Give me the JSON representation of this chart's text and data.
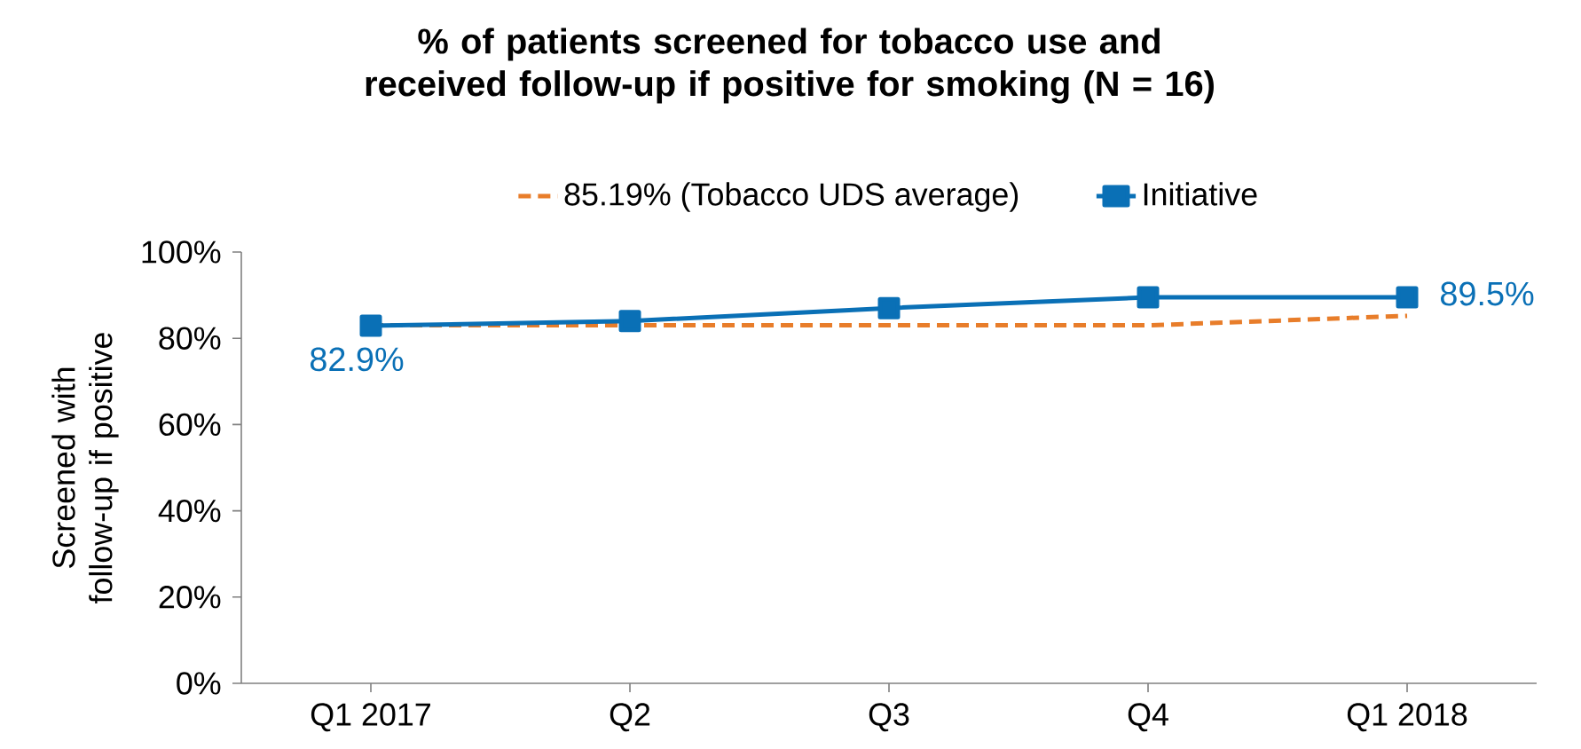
{
  "chart_data": {
    "type": "line",
    "title": "% of patients screened for tobacco use and received follow-up if positive for smoking (N = 16)",
    "ylabel": "Screened with follow-up if positive",
    "categories": [
      "Q1 2017",
      "Q2",
      "Q3",
      "Q4",
      "Q1 2018"
    ],
    "series": [
      {
        "name": "85.19% (Tobacco UDS average)",
        "color": "#e87d2a",
        "values": [
          83,
          83,
          83,
          83,
          85.2
        ],
        "line_style": "dashed",
        "marker": "none"
      },
      {
        "name": "Initiative",
        "color": "#0a70b6",
        "values": [
          82.9,
          84,
          87,
          89.5,
          89.5
        ],
        "line_style": "solid",
        "marker": "square",
        "value_labels": [
          "82.9%",
          null,
          null,
          null,
          "89.5%"
        ]
      }
    ],
    "ylim": [
      0,
      100
    ],
    "yticks": [
      {
        "value": 0,
        "label": "0%"
      },
      {
        "value": 20,
        "label": "20%"
      },
      {
        "value": 40,
        "label": "40%"
      },
      {
        "value": 60,
        "label": "60%"
      },
      {
        "value": 80,
        "label": "80%"
      },
      {
        "value": 100,
        "label": "100%"
      }
    ],
    "legend": "top",
    "grid": false
  }
}
